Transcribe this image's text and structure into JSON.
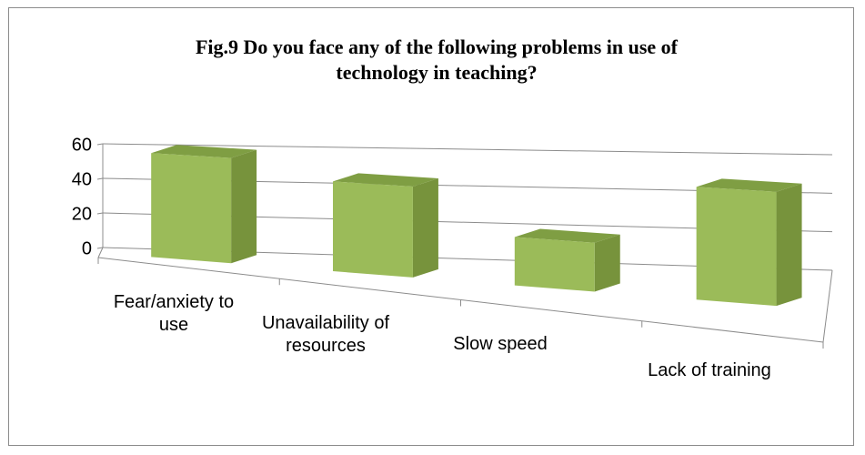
{
  "chart_data": {
    "type": "bar3d",
    "title": "Fig.9  Do you face any of the following problems in use of technology in teaching?",
    "categories": [
      "Fear/anxiety to use",
      "Unavailability of resources",
      "Slow speed",
      "Lack of training"
    ],
    "values": [
      50,
      42,
      22,
      50
    ],
    "color": "#9bbb59",
    "ylim": [
      0,
      60
    ],
    "yticks": [
      0,
      20,
      40,
      60
    ],
    "grid": true
  }
}
